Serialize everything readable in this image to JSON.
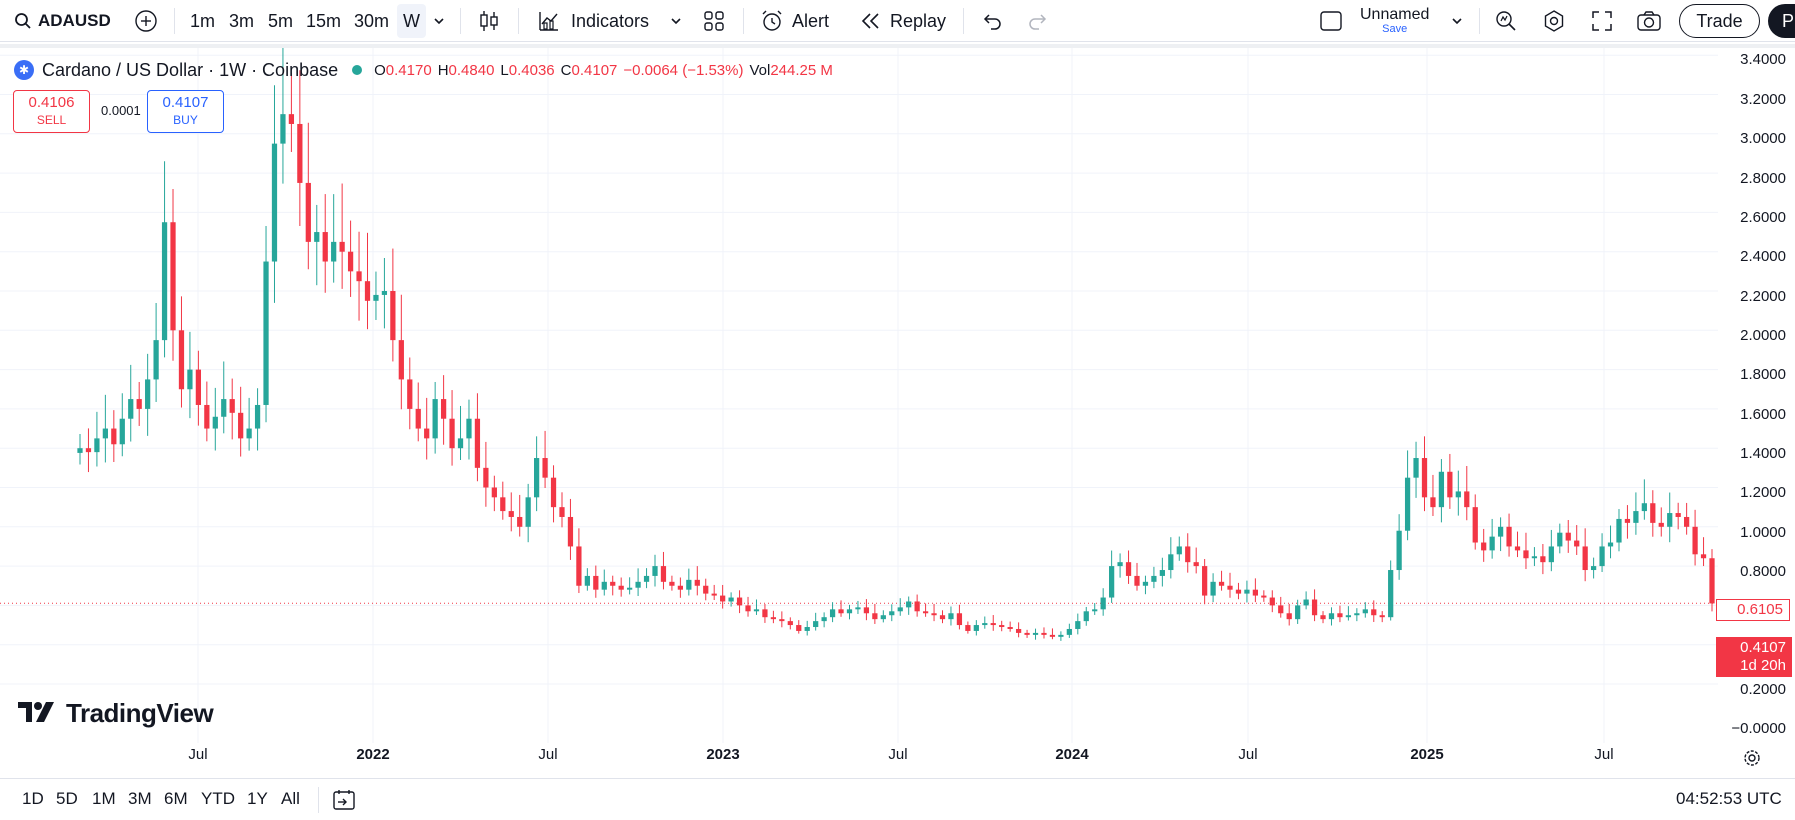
{
  "toolbar": {
    "symbol": "ADAUSD",
    "intervals": [
      "1m",
      "3m",
      "5m",
      "15m",
      "30m",
      "W"
    ],
    "indicators_label": "Indicators",
    "alert_label": "Alert",
    "replay_label": "Replay",
    "layout_name": "Unnamed",
    "layout_save": "Save",
    "trade_label": "Trade",
    "publish_label": "Pu"
  },
  "legend": {
    "title": "Cardano / US Dollar · 1W · Coinbase",
    "open_key": "O",
    "open": "0.4170",
    "high_key": "H",
    "high": "0.4840",
    "low_key": "L",
    "low": "0.4036",
    "close_key": "C",
    "close": "0.4107",
    "change": "−0.0064 (−1.53%)",
    "vol_key": "Vol",
    "vol": "244.25 M"
  },
  "trade": {
    "sell_price": "0.4106",
    "sell_label": "SELL",
    "spread": "0.0001",
    "buy_price": "0.4107",
    "buy_label": "BUY"
  },
  "watermark": "TradingView",
  "price_axis": {
    "labels": [
      "3.4000",
      "3.2000",
      "3.0000",
      "2.8000",
      "2.6000",
      "2.4000",
      "2.2000",
      "2.0000",
      "1.8000",
      "1.6000",
      "1.4000",
      "1.2000",
      "1.0000",
      "0.8000",
      "0.2000",
      "−0.0000"
    ],
    "ma_value": "0.6105",
    "last_price": "0.4107",
    "countdown": "1d 20h"
  },
  "time_axis": {
    "labels": [
      {
        "text": "Jul",
        "year": false
      },
      {
        "text": "2022",
        "year": true
      },
      {
        "text": "Jul",
        "year": false
      },
      {
        "text": "2023",
        "year": true
      },
      {
        "text": "Jul",
        "year": false
      },
      {
        "text": "2024",
        "year": true
      },
      {
        "text": "Jul",
        "year": false
      },
      {
        "text": "2025",
        "year": true
      },
      {
        "text": "Jul",
        "year": false
      }
    ]
  },
  "bottom_bar": {
    "ranges": [
      "1D",
      "5D",
      "1M",
      "3M",
      "6M",
      "YTD",
      "1Y",
      "All"
    ],
    "clock": "04:52:53 UTC"
  },
  "colors": {
    "up": "#26a69a",
    "down": "#f23645",
    "grid": "#f0f3fa",
    "accent": "#2962ff"
  },
  "chart_data": {
    "type": "candlestick",
    "title": "Cardano / US Dollar · 1W · Coinbase",
    "ylim": [
      0,
      3.4
    ],
    "x_start": "2021-04",
    "x_end": "2025-10",
    "weekly_close": [
      1.2,
      1.18,
      1.25,
      1.3,
      1.22,
      1.35,
      1.45,
      1.4,
      1.55,
      1.75,
      2.35,
      1.8,
      1.5,
      1.6,
      1.42,
      1.3,
      1.36,
      1.45,
      1.38,
      1.25,
      1.3,
      1.42,
      2.15,
      2.75,
      2.9,
      2.85,
      2.55,
      2.25,
      2.3,
      2.15,
      2.25,
      2.2,
      2.1,
      2.05,
      1.95,
      1.98,
      2.0,
      1.75,
      1.55,
      1.4,
      1.3,
      1.25,
      1.45,
      1.35,
      1.2,
      1.25,
      1.35,
      1.1,
      1.0,
      0.95,
      0.88,
      0.85,
      0.8,
      0.95,
      1.15,
      1.05,
      0.9,
      0.85,
      0.7,
      0.5,
      0.55,
      0.48,
      0.52,
      0.5,
      0.48,
      0.49,
      0.52,
      0.55,
      0.6,
      0.52,
      0.5,
      0.48,
      0.53,
      0.5,
      0.46,
      0.45,
      0.42,
      0.44,
      0.4,
      0.37,
      0.38,
      0.34,
      0.33,
      0.32,
      0.3,
      0.27,
      0.29,
      0.32,
      0.34,
      0.38,
      0.36,
      0.38,
      0.39,
      0.36,
      0.33,
      0.35,
      0.37,
      0.39,
      0.42,
      0.37,
      0.36,
      0.35,
      0.33,
      0.36,
      0.3,
      0.27,
      0.3,
      0.31,
      0.3,
      0.29,
      0.28,
      0.26,
      0.25,
      0.26,
      0.25,
      0.24,
      0.25,
      0.28,
      0.32,
      0.37,
      0.38,
      0.44,
      0.6,
      0.62,
      0.55,
      0.5,
      0.52,
      0.55,
      0.58,
      0.66,
      0.7,
      0.62,
      0.6,
      0.45,
      0.52,
      0.5,
      0.48,
      0.46,
      0.48,
      0.45,
      0.44,
      0.4,
      0.36,
      0.33,
      0.4,
      0.43,
      0.35,
      0.33,
      0.36,
      0.34,
      0.35,
      0.36,
      0.38,
      0.35,
      0.34,
      0.58,
      0.78,
      1.05,
      1.15,
      0.95,
      0.9,
      1.08,
      0.95,
      0.98,
      0.9,
      0.72,
      0.68,
      0.75,
      0.8,
      0.7,
      0.68,
      0.64,
      0.65,
      0.62,
      0.7,
      0.77,
      0.73,
      0.7,
      0.58,
      0.6,
      0.7,
      0.72,
      0.84,
      0.82,
      0.88,
      0.92,
      0.82,
      0.8,
      0.87,
      0.85,
      0.8,
      0.66,
      0.64,
      0.41
    ]
  }
}
